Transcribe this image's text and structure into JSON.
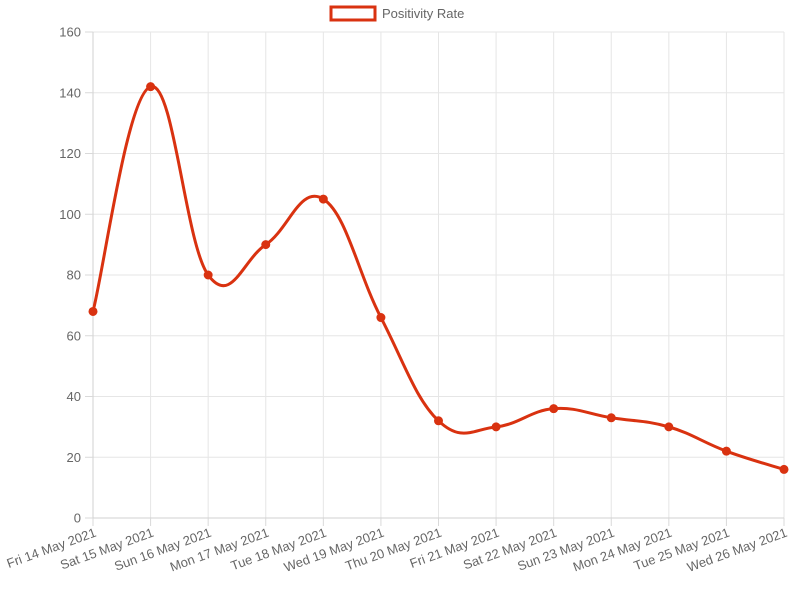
{
  "chart_data": {
    "type": "line",
    "categories": [
      "Fri 14 May 2021",
      "Sat 15 May 2021",
      "Sun 16 May 2021",
      "Mon 17 May 2021",
      "Tue 18 May 2021",
      "Wed 19 May 2021",
      "Thu 20 May 2021",
      "Fri 21 May 2021",
      "Sat 22 May 2021",
      "Sun 23 May 2021",
      "Mon 24 May 2021",
      "Tue 25 May 2021",
      "Wed 26 May 2021"
    ],
    "series": [
      {
        "name": "Positivity Rate",
        "color": "#d93210",
        "values": [
          68,
          142,
          80,
          90,
          105,
          66,
          32,
          30,
          36,
          33,
          30,
          22,
          16
        ]
      }
    ],
    "ylim": [
      0,
      160
    ],
    "yticks": [
      "0",
      "20",
      "40",
      "60",
      "80",
      "100",
      "120",
      "140",
      "160"
    ],
    "grid": true,
    "legend_position": "top-center",
    "title": "",
    "xlabel": "",
    "ylabel": ""
  }
}
